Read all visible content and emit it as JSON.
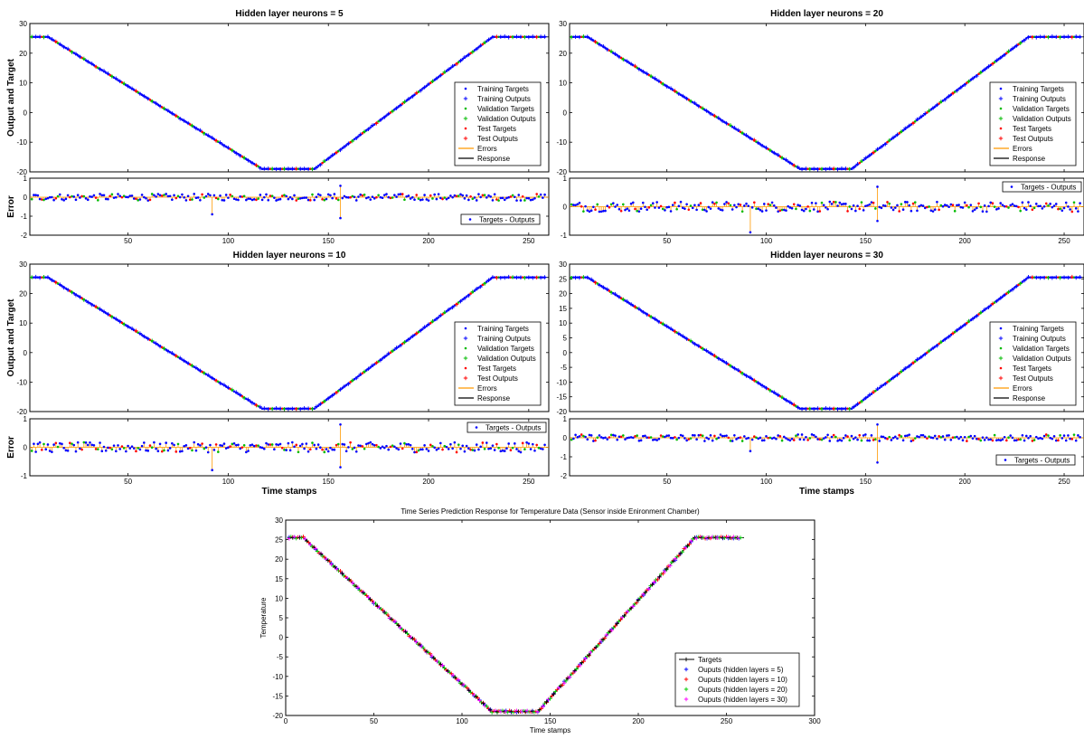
{
  "chart_data": [
    {
      "type": "line",
      "title": "Hidden layer neurons = 5",
      "ylabel": "Output and Target",
      "xlim": [
        1,
        260
      ],
      "ylim": [
        -20,
        30
      ],
      "yticks": [
        -20,
        -10,
        0,
        10,
        20,
        30
      ],
      "xticks": [
        50,
        100,
        150,
        200,
        250
      ],
      "legend": [
        "Training Targets",
        "Training Outputs",
        "Validation Targets",
        "Validation Outputs",
        "Test Targets",
        "Test Outputs",
        "Errors",
        "Response"
      ],
      "legend_position": "lower-right",
      "profile": {
        "x": [
          1,
          10,
          117,
          143,
          232,
          260
        ],
        "y": [
          25.5,
          25.5,
          -19,
          -19,
          25.5,
          25.5
        ]
      },
      "error_panel": {
        "ylabel": "Error",
        "ylim": [
          -2,
          1
        ],
        "yticks": [
          -2,
          -1,
          0,
          1
        ],
        "xticks": [
          50,
          100,
          150,
          200,
          250
        ],
        "legend": [
          "Targets - Outputs"
        ],
        "legend_position": "lower-right",
        "spikes": [
          {
            "x": 92,
            "y": -0.9
          },
          {
            "x": 156,
            "y": -1.1
          },
          {
            "x": 156,
            "y": 0.6
          }
        ]
      }
    },
    {
      "type": "line",
      "title": "Hidden layer neurons = 20",
      "ylabel": "",
      "xlim": [
        1,
        260
      ],
      "ylim": [
        -20,
        30
      ],
      "yticks": [
        -20,
        -10,
        0,
        10,
        20,
        30
      ],
      "xticks": [
        50,
        100,
        150,
        200,
        250
      ],
      "legend": [
        "Training Targets",
        "Training Outputs",
        "Validation Targets",
        "Validation Outputs",
        "Test Targets",
        "Test Outputs",
        "Errors",
        "Response"
      ],
      "legend_position": "lower-right",
      "profile": {
        "x": [
          1,
          10,
          117,
          143,
          232,
          260
        ],
        "y": [
          25.5,
          25.5,
          -19,
          -19,
          25.5,
          25.5
        ]
      },
      "error_panel": {
        "ylabel": "",
        "ylim": [
          -1,
          1
        ],
        "yticks": [
          -1,
          0,
          1
        ],
        "xticks": [
          50,
          100,
          150,
          200,
          250
        ],
        "legend": [
          "Targets - Outputs"
        ],
        "legend_position": "upper-right",
        "spikes": [
          {
            "x": 92,
            "y": -0.9
          },
          {
            "x": 156,
            "y": 0.7
          },
          {
            "x": 156,
            "y": -0.5
          }
        ]
      }
    },
    {
      "type": "line",
      "title": "Hidden layer neurons = 10",
      "ylabel": "Output and Target",
      "xlim": [
        1,
        260
      ],
      "ylim": [
        -20,
        30
      ],
      "yticks": [
        -20,
        -10,
        0,
        10,
        20,
        30
      ],
      "xticks": [
        50,
        100,
        150,
        200,
        250
      ],
      "legend": [
        "Training Targets",
        "Training Outputs",
        "Validation Targets",
        "Validation Outputs",
        "Test Targets",
        "Test Outputs",
        "Errors",
        "Response"
      ],
      "legend_position": "lower-right",
      "profile": {
        "x": [
          1,
          10,
          117,
          143,
          232,
          260
        ],
        "y": [
          25.5,
          25.5,
          -19,
          -19,
          25.5,
          25.5
        ]
      },
      "error_panel": {
        "ylabel": "Error",
        "xlabel": "Time stamps",
        "ylim": [
          -1,
          1
        ],
        "yticks": [
          -1,
          0,
          1
        ],
        "xticks": [
          50,
          100,
          150,
          200,
          250
        ],
        "legend": [
          "Targets - Outputs"
        ],
        "legend_position": "upper-right",
        "spikes": [
          {
            "x": 92,
            "y": -0.8
          },
          {
            "x": 156,
            "y": -0.7
          },
          {
            "x": 156,
            "y": 0.8
          }
        ]
      }
    },
    {
      "type": "line",
      "title": "Hidden layer neurons = 30",
      "ylabel": "",
      "xlim": [
        1,
        260
      ],
      "ylim": [
        -20,
        30
      ],
      "yticks": [
        -20,
        -15,
        -10,
        -5,
        0,
        5,
        10,
        15,
        20,
        25,
        30
      ],
      "xticks": [
        50,
        100,
        150,
        200,
        250
      ],
      "legend": [
        "Training Targets",
        "Training Outputs",
        "Validation Targets",
        "Validation Outputs",
        "Test Targets",
        "Test Outputs",
        "Errors",
        "Response"
      ],
      "legend_position": "lower-right",
      "profile": {
        "x": [
          1,
          10,
          117,
          143,
          232,
          260
        ],
        "y": [
          25.5,
          25.5,
          -19,
          -19,
          25.5,
          25.5
        ]
      },
      "error_panel": {
        "ylabel": "",
        "xlabel": "Time stamps",
        "ylim": [
          -2,
          1
        ],
        "yticks": [
          -2,
          -1,
          0,
          1
        ],
        "xticks": [
          50,
          100,
          150,
          200,
          250
        ],
        "legend": [
          "Targets - Outputs"
        ],
        "legend_position": "lower-right",
        "spikes": [
          {
            "x": 92,
            "y": -0.7
          },
          {
            "x": 156,
            "y": -1.3
          },
          {
            "x": 156,
            "y": 0.7
          }
        ]
      }
    },
    {
      "type": "line",
      "title": "Time Series Prediction Response for Temperature Data (Sensor inside Enironment Chamber)",
      "xlabel": "Time stamps",
      "ylabel": "Temperature",
      "xlim": [
        0,
        300
      ],
      "ylim": [
        -20,
        30
      ],
      "xticks": [
        0,
        50,
        100,
        150,
        200,
        250,
        300
      ],
      "yticks": [
        -20,
        -15,
        -10,
        -5,
        0,
        5,
        10,
        15,
        20,
        25,
        30
      ],
      "legend": [
        "Targets",
        "Ouputs (hidden layers = 5)",
        "Ouputs (hidden layers = 10)",
        "Ouputs (hidden layers = 20)",
        "Ouputs (hidden layers = 30)"
      ],
      "legend_position": "lower-right",
      "series_colors": [
        "#000000",
        "#0000ff",
        "#ff0000",
        "#00cc00",
        "#ff00ff"
      ],
      "profile": {
        "x": [
          1,
          10,
          117,
          143,
          232,
          260
        ],
        "y": [
          25.5,
          25.5,
          -19,
          -19,
          25.5,
          25.5
        ]
      }
    }
  ]
}
